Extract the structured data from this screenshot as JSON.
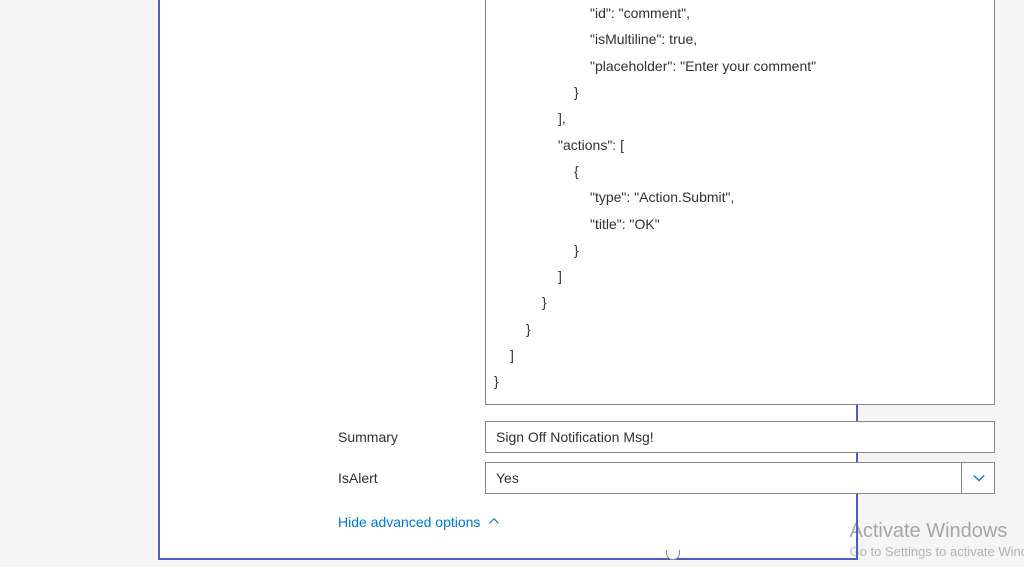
{
  "code": {
    "lines": [
      {
        "indent": 96,
        "text": "\"id\": \"comment\","
      },
      {
        "indent": 96,
        "text": "\"isMultiline\": true,"
      },
      {
        "indent": 96,
        "text": "\"placeholder\": \"Enter your comment\""
      },
      {
        "indent": 80,
        "text": "}"
      },
      {
        "indent": 64,
        "text": "],"
      },
      {
        "indent": 64,
        "text": "\"actions\": ["
      },
      {
        "indent": 80,
        "text": "{"
      },
      {
        "indent": 96,
        "text": "\"type\": \"Action.Submit\","
      },
      {
        "indent": 96,
        "text": "\"title\": \"OK\""
      },
      {
        "indent": 80,
        "text": "}"
      },
      {
        "indent": 64,
        "text": "]"
      },
      {
        "indent": 48,
        "text": "}"
      },
      {
        "indent": 32,
        "text": "}"
      },
      {
        "indent": 16,
        "text": "]"
      },
      {
        "indent": 0,
        "text": "}"
      }
    ]
  },
  "fields": {
    "summary": {
      "label": "Summary",
      "value": "Sign Off Notification Msg!"
    },
    "isAlert": {
      "label": "IsAlert",
      "value": "Yes"
    }
  },
  "links": {
    "advanced": "Hide advanced options"
  },
  "watermark": {
    "title": "Activate Windows",
    "sub": "Go to Settings to activate Wind"
  },
  "colors": {
    "panel_border": "#4a5fc1",
    "input_border": "#8a8886",
    "link": "#0078d4",
    "chevron": "#0078d4"
  }
}
